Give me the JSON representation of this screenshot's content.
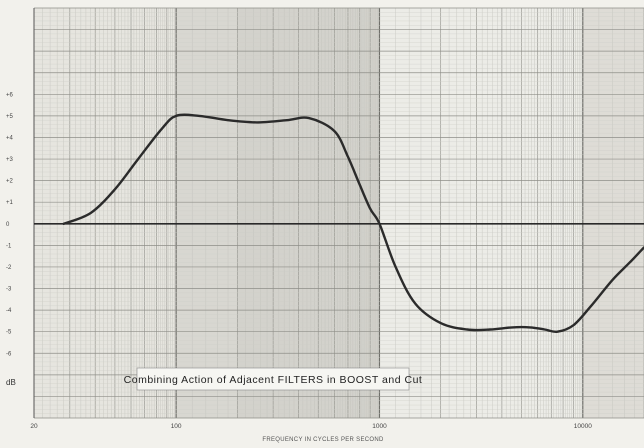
{
  "chart_data": {
    "type": "line",
    "title": "Combining Action of Adjacent FILTERS in BOOST and Cut",
    "xlabel": "FREQUENCY IN CYCLES PER SECOND",
    "ylabel": "dB",
    "x_scale": "log",
    "xlim": [
      20,
      20000
    ],
    "ylim": [
      -9,
      10
    ],
    "x_tick_labels": [
      "20",
      "100",
      "1000",
      "10000"
    ],
    "y_tick_labels": [
      "+6",
      "+5",
      "+4",
      "+3",
      "+2",
      "+1",
      "0",
      "-1",
      "-2",
      "-3",
      "-4",
      "-5",
      "-6"
    ],
    "y_tick_values": [
      6,
      5,
      4,
      3,
      2,
      1,
      0,
      -1,
      -2,
      -3,
      -4,
      -5,
      -6
    ],
    "grid": true,
    "series": [
      {
        "x": [
          28,
          38,
          50,
          65,
          85,
          100,
          130,
          180,
          250,
          350,
          450,
          600,
          700,
          800,
          900,
          1000,
          1200,
          1500,
          2000,
          2700,
          3500,
          4500,
          5500,
          6500,
          7500,
          9000,
          11000,
          14000,
          17000,
          20000
        ],
        "y": [
          0,
          0.5,
          1.6,
          3.0,
          4.4,
          5.0,
          5.0,
          4.8,
          4.7,
          4.8,
          4.9,
          4.3,
          3.1,
          1.8,
          0.7,
          0,
          -2.0,
          -3.7,
          -4.6,
          -4.9,
          -4.9,
          -4.8,
          -4.8,
          -4.9,
          -5.0,
          -4.7,
          -3.8,
          -2.6,
          -1.8,
          -1.1
        ]
      }
    ]
  }
}
